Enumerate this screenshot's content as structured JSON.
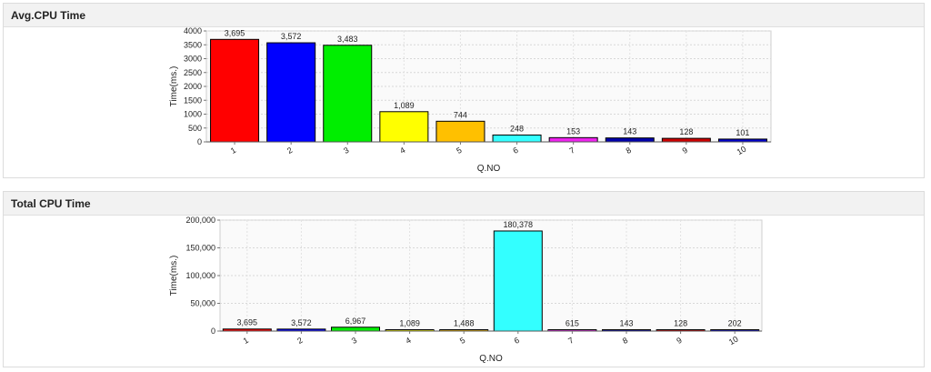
{
  "panels": [
    {
      "title": "Avg.CPU Time"
    },
    {
      "title": "Total CPU Time"
    }
  ],
  "chart_data": [
    {
      "type": "bar",
      "title": "Avg.CPU Time",
      "xlabel": "Q.NO",
      "ylabel": "Time(ms.)",
      "categories": [
        "1",
        "2",
        "3",
        "4",
        "5",
        "6",
        "7",
        "8",
        "9",
        "10"
      ],
      "values": [
        3695,
        3572,
        3483,
        1089,
        744,
        248,
        153,
        143,
        128,
        101
      ],
      "value_labels": [
        "3,695",
        "3,572",
        "3,483",
        "1,089",
        "744",
        "248",
        "153",
        "143",
        "128",
        "101"
      ],
      "bar_colors": [
        "#ff0000",
        "#0000ff",
        "#00ee00",
        "#ffff00",
        "#ffc000",
        "#33ffff",
        "#ee22ee",
        "#0000aa",
        "#cc0000",
        "#0000cc"
      ],
      "ylim": [
        0,
        4000
      ],
      "yticks": [
        0,
        500,
        1000,
        1500,
        2000,
        2500,
        3000,
        3500,
        4000
      ],
      "ytick_labels": [
        "0",
        "500",
        "1000",
        "1500",
        "2000",
        "2500",
        "3000",
        "3500",
        "4000"
      ],
      "grid": true
    },
    {
      "type": "bar",
      "title": "Total CPU Time",
      "xlabel": "Q.NO",
      "ylabel": "Time(ms.)",
      "categories": [
        "1",
        "2",
        "3",
        "4",
        "5",
        "6",
        "7",
        "8",
        "9",
        "10"
      ],
      "values": [
        3695,
        3572,
        6967,
        1089,
        1488,
        180378,
        615,
        143,
        128,
        202
      ],
      "value_labels": [
        "3,695",
        "3,572",
        "6,967",
        "1,089",
        "1,488",
        "180,378",
        "615",
        "143",
        "128",
        "202"
      ],
      "bar_colors": [
        "#ff0000",
        "#0000ff",
        "#00ee00",
        "#ffff00",
        "#ffc000",
        "#33ffff",
        "#ee22ee",
        "#0000aa",
        "#cc0000",
        "#0000cc"
      ],
      "ylim": [
        0,
        200000
      ],
      "yticks": [
        0,
        50000,
        100000,
        150000,
        200000
      ],
      "ytick_labels": [
        "0",
        "50,000",
        "100,000",
        "150,000",
        "200,000"
      ],
      "grid": true
    }
  ]
}
